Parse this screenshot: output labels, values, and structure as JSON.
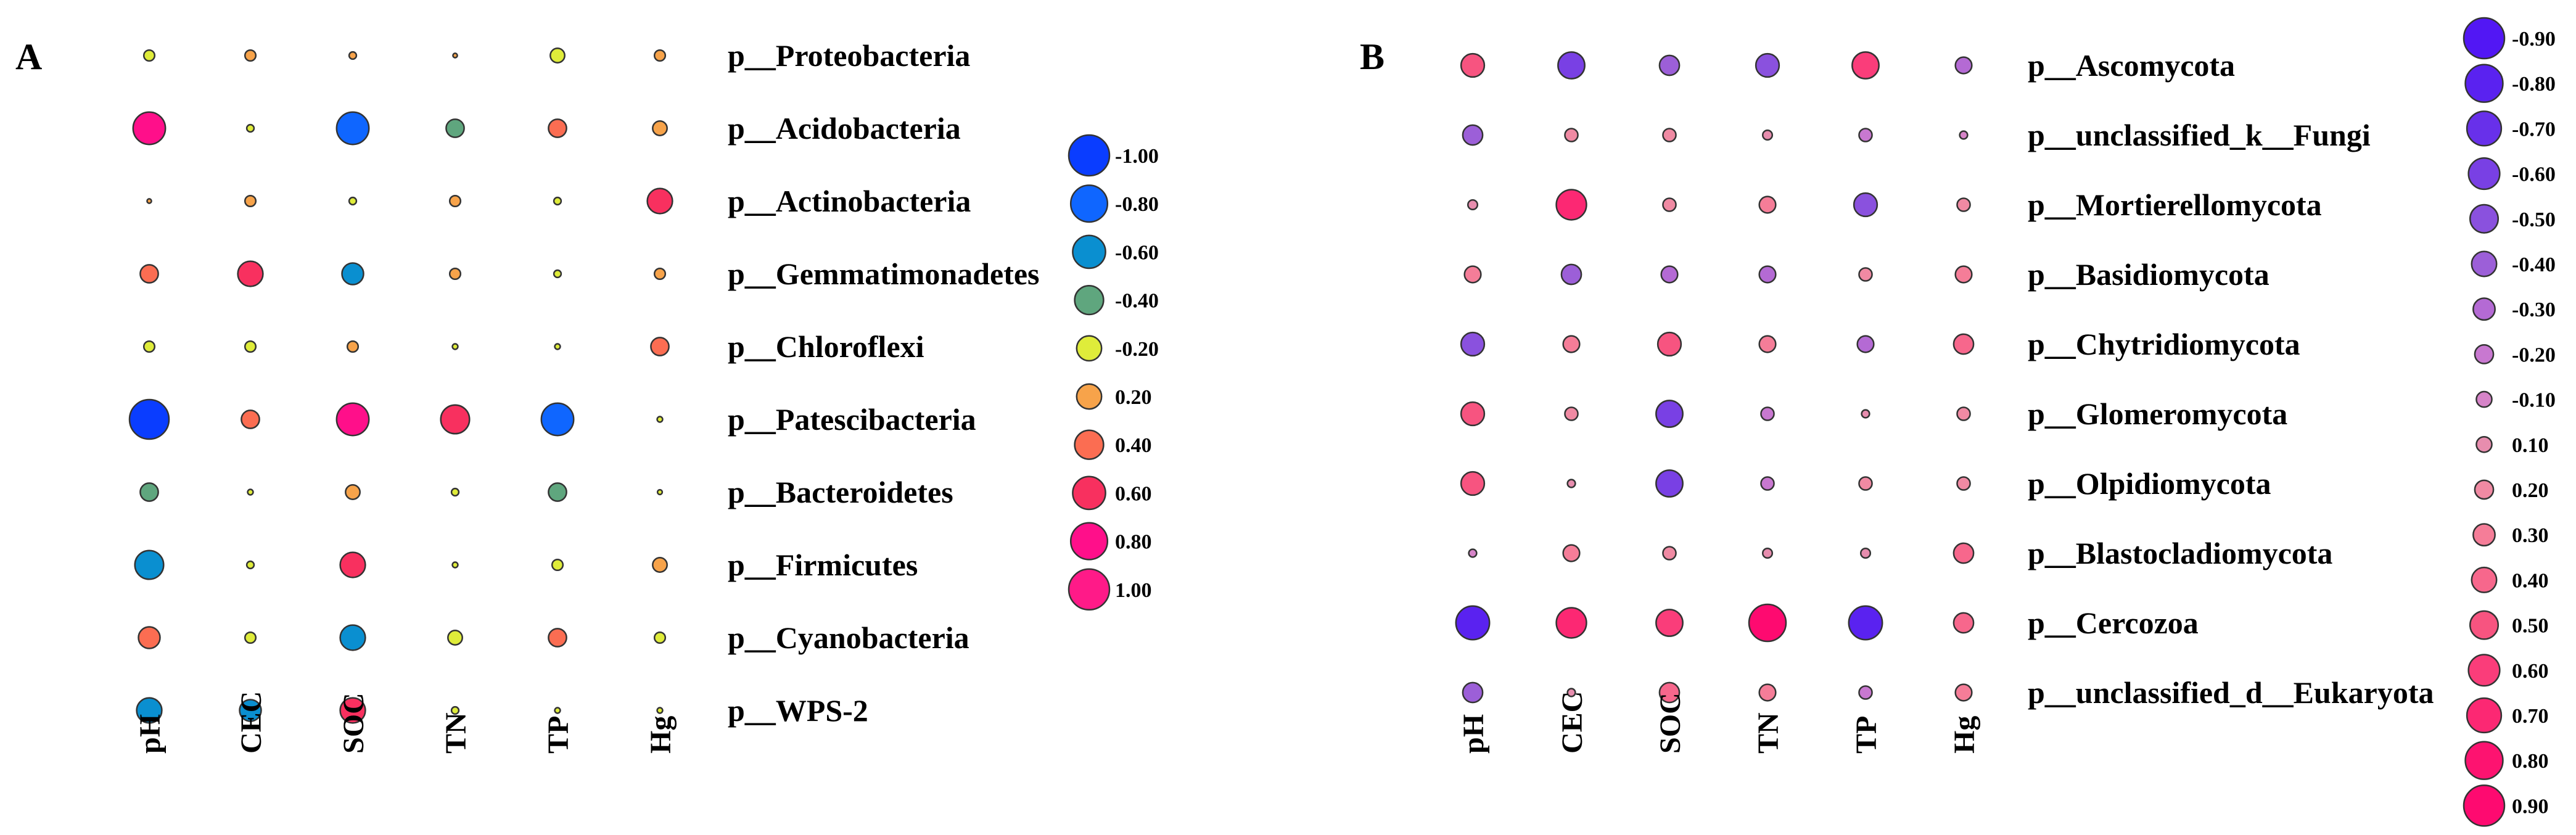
{
  "chart_data": [
    {
      "type": "bubble-correlation",
      "panel": "A",
      "columns": [
        "pH",
        "CEC",
        "SOC",
        "TN",
        "TP",
        "Hg"
      ],
      "rows": [
        "p__Proteobacteria",
        "p__Acidobacteria",
        "p__Actinobacteria",
        "p__Gemmatimonadetes",
        "p__Chloroflexi",
        "p__Patescibacteria",
        "p__Bacteroidetes",
        "p__Firmicutes",
        "p__Cyanobacteria",
        "p__WPS-2"
      ],
      "values": [
        [
          -0.2,
          0.2,
          0.1,
          0.02,
          -0.3,
          0.2
        ],
        [
          0.8,
          -0.1,
          -0.8,
          -0.4,
          0.4,
          0.3
        ],
        [
          0.02,
          0.2,
          -0.1,
          0.2,
          -0.1,
          0.6
        ],
        [
          0.4,
          0.6,
          -0.5,
          0.2,
          -0.1,
          0.2
        ],
        [
          -0.2,
          -0.2,
          0.2,
          -0.05,
          -0.05,
          0.4
        ],
        [
          -1.0,
          0.4,
          0.8,
          0.7,
          -0.8,
          -0.05
        ],
        [
          -0.4,
          -0.05,
          0.3,
          -0.1,
          -0.4,
          -0.03
        ],
        [
          -0.7,
          -0.1,
          0.6,
          -0.05,
          -0.2,
          0.3
        ],
        [
          0.5,
          -0.2,
          -0.6,
          -0.3,
          0.4,
          -0.2
        ],
        [
          -0.6,
          -0.5,
          0.6,
          -0.1,
          -0.05,
          -0.05
        ]
      ],
      "legend": [
        "-1.00",
        "-0.80",
        "-0.60",
        "-0.40",
        "-0.20",
        "0.20",
        "0.40",
        "0.60",
        "0.80",
        "1.00"
      ],
      "legend_values": [
        -1.0,
        -0.8,
        -0.6,
        -0.4,
        -0.2,
        0.2,
        0.4,
        0.6,
        0.8,
        1.0
      ],
      "legend_colors": [
        "#0a3dff",
        "#0f66ff",
        "#0a8fd0",
        "#5fa67e",
        "#dfec3a",
        "#f7a34a",
        "#fb6d52",
        "#f8305f",
        "#ff0f8a",
        "#ff1a88"
      ]
    },
    {
      "type": "bubble-correlation",
      "panel": "B",
      "columns": [
        "pH",
        "CEC",
        "SOC",
        "TN",
        "TP",
        "Hg"
      ],
      "rows": [
        "p__Ascomycota",
        "p__unclassified_k__Fungi",
        "p__Mortierellomycota",
        "p__Basidiomycota",
        "p__Chytridiomycota",
        "p__Glomeromycota",
        "p__Olpidiomycota",
        "p__Blastocladiomycota",
        "p__Cercozoa",
        "p__unclassified_d__Eukaryota"
      ],
      "values": [
        [
          0.5,
          -0.6,
          -0.4,
          -0.5,
          0.6,
          -0.3
        ],
        [
          -0.4,
          0.2,
          0.2,
          0.1,
          -0.2,
          -0.05
        ],
        [
          0.1,
          0.7,
          0.2,
          0.3,
          -0.5,
          0.2
        ],
        [
          0.3,
          -0.4,
          -0.3,
          -0.3,
          0.2,
          0.3
        ],
        [
          -0.5,
          0.3,
          0.5,
          0.3,
          -0.3,
          0.4
        ],
        [
          0.5,
          0.2,
          -0.6,
          -0.2,
          0.05,
          0.2
        ],
        [
          0.5,
          0.05,
          -0.6,
          -0.2,
          0.2,
          0.2
        ],
        [
          -0.05,
          0.3,
          0.2,
          0.1,
          0.1,
          0.4
        ],
        [
          -0.8,
          0.7,
          0.6,
          0.9,
          -0.8,
          0.4
        ],
        [
          -0.4,
          0.05,
          0.4,
          0.3,
          -0.2,
          0.3
        ]
      ],
      "legend": [
        "-0.90",
        "-0.80",
        "-0.70",
        "-0.60",
        "-0.50",
        "-0.40",
        "-0.30",
        "-0.20",
        "-0.10",
        "0.10",
        "0.20",
        "0.30",
        "0.40",
        "0.50",
        "0.60",
        "0.70",
        "0.80",
        "0.90"
      ],
      "legend_values": [
        -0.9,
        -0.8,
        -0.7,
        -0.6,
        -0.5,
        -0.4,
        -0.3,
        -0.2,
        -0.1,
        0.1,
        0.2,
        0.3,
        0.4,
        0.5,
        0.6,
        0.7,
        0.8,
        0.9
      ],
      "legend_colors": [
        "#5217f4",
        "#5a22f0",
        "#6830ea",
        "#7940e4",
        "#8a51de",
        "#9c5fd8",
        "#b46ad4",
        "#c878d0",
        "#d684c8",
        "#e78dae",
        "#f08aa3",
        "#f57d98",
        "#f7678c",
        "#f75480",
        "#fa3d7a",
        "#fc2873",
        "#fd1370",
        "#fe0a70"
      ]
    }
  ]
}
